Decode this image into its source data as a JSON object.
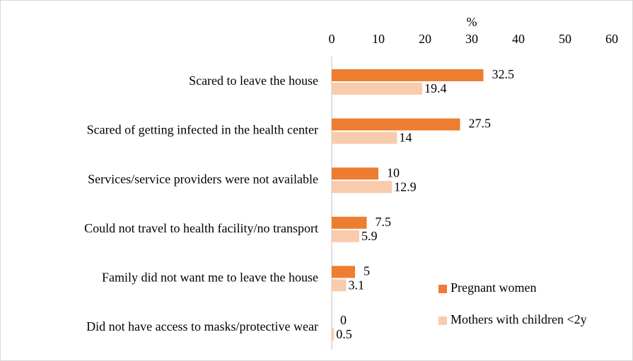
{
  "chart_data": {
    "type": "bar",
    "orientation": "horizontal",
    "x_label": "%",
    "categories": [
      "Scared to leave the house",
      "Scared of getting infected in the health center",
      "Services/service providers were not available",
      "Could not travel to health facility/no transport",
      "Family did not want me to leave the house",
      "Did not have access to masks/protective wear"
    ],
    "series": [
      {
        "name": "Pregnant women",
        "color": "#ED7D31",
        "values": [
          32.5,
          27.5,
          10,
          7.5,
          5,
          0
        ]
      },
      {
        "name": "Mothers with children <2y",
        "color": "#F8CBAD",
        "values": [
          19.4,
          14,
          12.9,
          5.9,
          3.1,
          0.5
        ]
      }
    ],
    "xlim": [
      0,
      60
    ],
    "xticks": [
      0,
      10,
      20,
      30,
      40,
      50,
      60
    ],
    "grid": false,
    "legend": "lower right"
  }
}
